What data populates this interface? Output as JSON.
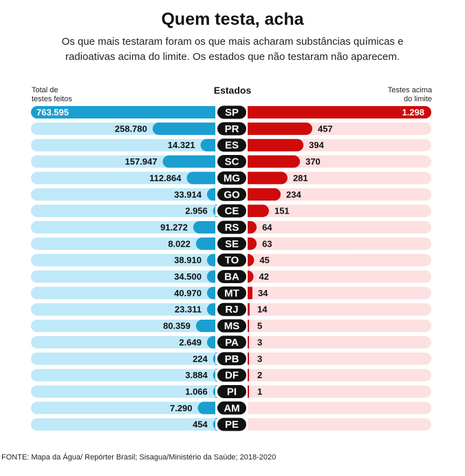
{
  "chart_data": {
    "type": "bar",
    "title": "Quem testa, acha",
    "subtitle": "Os que mais testaram foram os que mais acharam substâncias químicas e radioativas acima do limite. Os estados que não testaram não aparecem.",
    "left_label": "Total de testes feitos",
    "center_label": "Estados",
    "right_label": "Testes acima do limite",
    "categories": [
      "SP",
      "PR",
      "ES",
      "SC",
      "MG",
      "GO",
      "CE",
      "RS",
      "SE",
      "TO",
      "BA",
      "MT",
      "RJ",
      "MS",
      "PA",
      "PB",
      "DF",
      "PI",
      "AM",
      "PE"
    ],
    "series": [
      {
        "name": "Total de testes feitos",
        "values": [
          763595,
          258780,
          14321,
          157947,
          112864,
          33914,
          2956,
          91272,
          8022,
          38910,
          34500,
          40970,
          23311,
          80359,
          2649,
          224,
          3884,
          1066,
          7290,
          454
        ],
        "labels": [
          "763.595",
          "258.780",
          "14.321",
          "157.947",
          "112.864",
          "33.914",
          "2.956",
          "91.272",
          "8.022",
          "38.910",
          "34.500",
          "40.970",
          "23.311",
          "80.359",
          "2.649",
          "224",
          "3.884",
          "1.066",
          "7.290",
          "454"
        ],
        "display_fraction": [
          1.0,
          0.34,
          0.08,
          0.285,
          0.155,
          0.045,
          0.012,
          0.12,
          0.105,
          0.045,
          0.045,
          0.045,
          0.045,
          0.105,
          0.045,
          0.012,
          0.012,
          0.012,
          0.095,
          0.012
        ]
      },
      {
        "name": "Testes acima do limite",
        "values": [
          1298,
          457,
          394,
          370,
          281,
          234,
          151,
          64,
          63,
          45,
          42,
          34,
          14,
          5,
          3,
          3,
          2,
          1,
          null,
          null
        ],
        "labels": [
          "1.298",
          "457",
          "394",
          "370",
          "281",
          "234",
          "151",
          "64",
          "63",
          "45",
          "42",
          "34",
          "14",
          "5",
          "3",
          "3",
          "2",
          "1",
          "",
          ""
        ],
        "display_fraction": [
          1.0,
          0.352,
          0.304,
          0.285,
          0.217,
          0.18,
          0.116,
          0.049,
          0.049,
          0.035,
          0.032,
          0.026,
          0.011,
          0.004,
          0.004,
          0.004,
          0.004,
          0.004,
          0,
          0
        ]
      }
    ],
    "colors": {
      "left_bar": "#1a9fd0",
      "left_track": "#bfe9f8",
      "right_bar": "#cf0a0a",
      "right_track": "#fde0e1",
      "pill": "#111111",
      "pill_text": "#ffffff"
    }
  },
  "source": "FONTE:  Mapa da Água/ Repórter Brasil; Sisagua/Ministério da Saúde; 2018-2020"
}
